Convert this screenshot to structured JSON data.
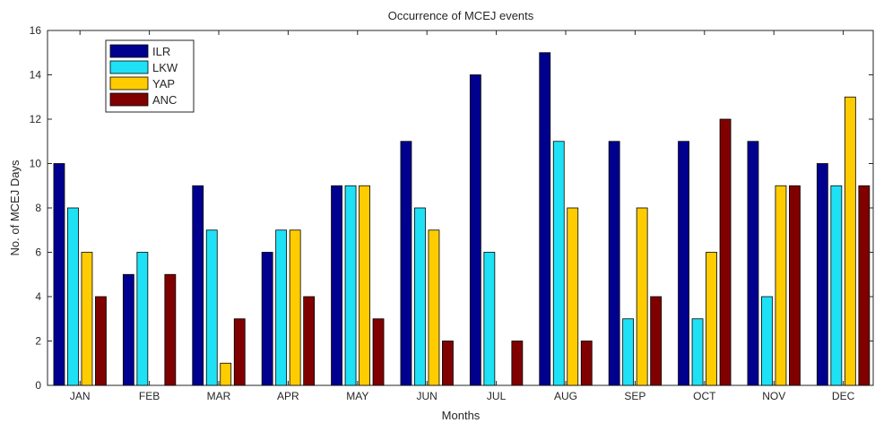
{
  "chart_data": {
    "type": "bar",
    "title": "Occurrence of MCEJ events",
    "xlabel": "Months",
    "ylabel": "No. of MCEJ Days",
    "ylim": [
      0,
      16
    ],
    "yticks": [
      0,
      2,
      4,
      6,
      8,
      10,
      12,
      14,
      16
    ],
    "grid": false,
    "legend_position": "top-left",
    "categories": [
      "JAN",
      "FEB",
      "MAR",
      "APR",
      "MAY",
      "JUN",
      "JUL",
      "AUG",
      "SEP",
      "OCT",
      "NOV",
      "DEC"
    ],
    "series": [
      {
        "name": "ILR",
        "color": "#00008f",
        "values": [
          10,
          5,
          9,
          6,
          9,
          11,
          14,
          15,
          11,
          11,
          11,
          10
        ]
      },
      {
        "name": "LKW",
        "color": "#1ee1f5",
        "values": [
          8,
          6,
          7,
          7,
          9,
          8,
          6,
          11,
          3,
          3,
          4,
          9
        ]
      },
      {
        "name": "YAP",
        "color": "#ffcc00",
        "values": [
          6,
          0,
          1,
          7,
          9,
          7,
          0,
          8,
          8,
          6,
          9,
          13
        ]
      },
      {
        "name": "ANC",
        "color": "#800000",
        "values": [
          4,
          5,
          3,
          4,
          3,
          2,
          2,
          2,
          4,
          12,
          9,
          9
        ]
      }
    ]
  }
}
